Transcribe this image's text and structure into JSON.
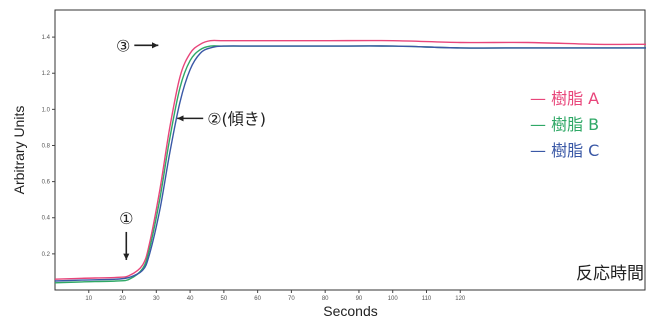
{
  "chart_data": {
    "type": "line",
    "title": "",
    "xlabel": "Seconds",
    "ylabel": "Arbitrary Units",
    "xlim": [
      0,
      175
    ],
    "ylim": [
      0,
      1.55
    ],
    "x_ticks": [
      {
        "value": 10,
        "label": "10"
      },
      {
        "value": 20,
        "label": "20"
      },
      {
        "value": 30,
        "label": "30"
      },
      {
        "value": 40,
        "label": "40"
      },
      {
        "value": 50,
        "label": "50"
      },
      {
        "value": 60,
        "label": "60"
      },
      {
        "value": 70,
        "label": "70"
      },
      {
        "value": 80,
        "label": "80"
      },
      {
        "value": 90,
        "label": "90"
      },
      {
        "value": 100,
        "label": "100"
      },
      {
        "value": 110,
        "label": "110"
      },
      {
        "value": 120,
        "label": "120"
      }
    ],
    "y_ticks": [
      {
        "value": 0.2,
        "label": "0.2"
      },
      {
        "value": 0.4,
        "label": "0.4"
      },
      {
        "value": 0.6,
        "label": "0.6"
      },
      {
        "value": 0.8,
        "label": "0.8"
      },
      {
        "value": 1.0,
        "label": "1.0"
      },
      {
        "value": 1.2,
        "label": "1.2"
      },
      {
        "value": 1.4,
        "label": "1.4"
      }
    ],
    "grid": false,
    "legend_position": "right",
    "series": [
      {
        "name": "— 樹脂 A",
        "color": "#e8457a",
        "x": [
          0,
          8,
          18,
          22,
          26,
          28,
          31,
          34,
          37,
          40,
          43,
          46,
          50,
          60,
          80,
          100,
          120,
          140,
          160,
          175
        ],
        "y": [
          0.06,
          0.065,
          0.07,
          0.08,
          0.14,
          0.26,
          0.55,
          0.9,
          1.18,
          1.31,
          1.36,
          1.38,
          1.38,
          1.38,
          1.38,
          1.38,
          1.37,
          1.37,
          1.36,
          1.36
        ]
      },
      {
        "name": "— 樹脂 B",
        "color": "#2fa866",
        "x": [
          0,
          8,
          18,
          22,
          26,
          28,
          31,
          34,
          37,
          40,
          43,
          46,
          50,
          60,
          80,
          100,
          120,
          140,
          160,
          175
        ],
        "y": [
          0.04,
          0.045,
          0.05,
          0.06,
          0.12,
          0.23,
          0.5,
          0.84,
          1.12,
          1.27,
          1.33,
          1.35,
          1.35,
          1.35,
          1.35,
          1.35,
          1.34,
          1.34,
          1.34,
          1.34
        ]
      },
      {
        "name": "— 樹脂 C",
        "color": "#3a58a6",
        "x": [
          0,
          8,
          18,
          22,
          26,
          28,
          31,
          34,
          37,
          40,
          43,
          46,
          50,
          60,
          80,
          100,
          120,
          140,
          160,
          175
        ],
        "y": [
          0.05,
          0.055,
          0.06,
          0.07,
          0.11,
          0.2,
          0.44,
          0.76,
          1.04,
          1.22,
          1.31,
          1.34,
          1.35,
          1.35,
          1.35,
          1.35,
          1.34,
          1.34,
          1.34,
          1.34
        ]
      }
    ],
    "annotations": [
      {
        "label": "①",
        "arrow": "down",
        "x": 22,
        "y": 0.1
      },
      {
        "label": "②(傾き)",
        "arrow": "left",
        "x": 35,
        "y": 0.95
      },
      {
        "label": "③",
        "arrow": "right",
        "x": 30,
        "y": 1.36
      }
    ],
    "corner_label": "反応時間"
  }
}
